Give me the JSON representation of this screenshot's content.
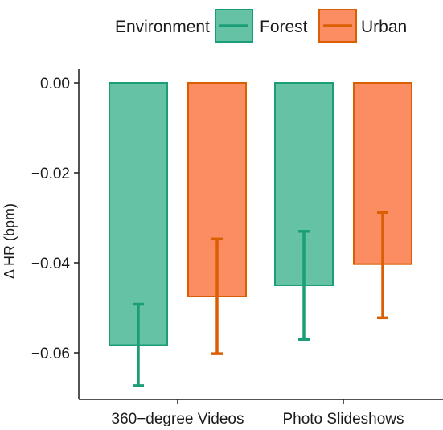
{
  "chart_data": {
    "type": "bar",
    "title": "",
    "xlabel": "",
    "ylabel": "Δ HR (bpm)",
    "ylim": [
      -0.0685,
      0.0025
    ],
    "yticks": [
      0.0,
      -0.02,
      -0.04,
      -0.06
    ],
    "ytick_labels": [
      "0.00",
      "−0.02",
      "−0.04",
      "−0.06"
    ],
    "categories": [
      "360−degree Videos",
      "Photo Slideshows"
    ],
    "legend": {
      "title": "Environment",
      "position": "top",
      "entries": [
        "Forest",
        "Urban"
      ]
    },
    "series": [
      {
        "name": "Forest",
        "fill": "#66c2a5",
        "stroke": "#1b9e77",
        "values": [
          -0.0583,
          -0.045
        ],
        "error_low": [
          -0.0673,
          -0.057
        ],
        "error_high": [
          -0.0492,
          -0.033
        ]
      },
      {
        "name": "Urban",
        "fill": "#fc8d62",
        "stroke": "#d95f02",
        "values": [
          -0.0475,
          -0.0403
        ],
        "error_low": [
          -0.0602,
          -0.0522
        ],
        "error_high": [
          -0.0347,
          -0.0288
        ]
      }
    ],
    "grid": false
  }
}
